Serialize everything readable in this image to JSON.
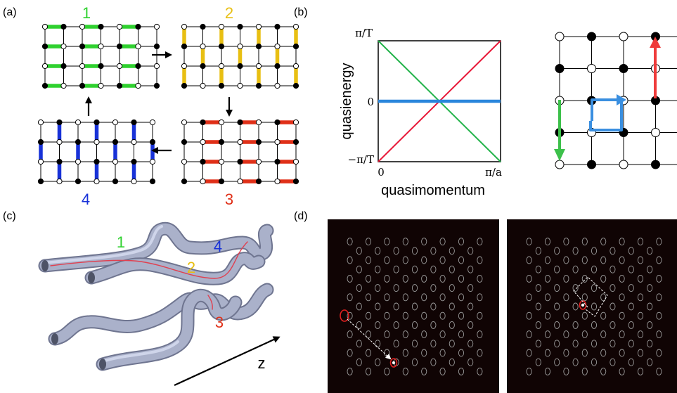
{
  "figure": {
    "panel_labels": {
      "a": "(a)",
      "b": "(b)",
      "c": "(c)",
      "d": "(d)"
    }
  },
  "panel_a": {
    "steps": [
      {
        "label": "1",
        "color": "#2fd12f"
      },
      {
        "label": "2",
        "color": "#e8bf12"
      },
      {
        "label": "3",
        "color": "#e03018"
      },
      {
        "label": "4",
        "color": "#1832d8"
      }
    ]
  },
  "panel_b": {
    "chart_data": {
      "type": "line",
      "xlabel": "quasimomentum",
      "ylabel": "quasienergy",
      "x_ticks": [
        "0",
        "π/a"
      ],
      "y_ticks": [
        "π/T",
        "0",
        "−π/T"
      ],
      "series": [
        {
          "color": "#e81838",
          "x": [
            "0",
            "π/a"
          ],
          "y": [
            "−π/T",
            "π/T"
          ]
        },
        {
          "color": "#22b34a",
          "x": [
            "0",
            "π/a"
          ],
          "y": [
            "π/T",
            "−π/T"
          ]
        },
        {
          "color": "#2a86dc",
          "x": [
            "0",
            "π/a"
          ],
          "y": [
            "0",
            "0"
          ]
        }
      ]
    },
    "lattice_arrow_colors": {
      "up": "#ef3b3b",
      "down": "#3cc04a",
      "loop": "#3a8fe0"
    }
  },
  "panel_c": {
    "waveguide_labels": [
      {
        "label": "1",
        "color": "#2fd12f"
      },
      {
        "label": "2",
        "color": "#e8bf12"
      },
      {
        "label": "3",
        "color": "#e03018"
      },
      {
        "label": "4",
        "color": "#1832d8"
      }
    ],
    "axis_label": "z"
  }
}
